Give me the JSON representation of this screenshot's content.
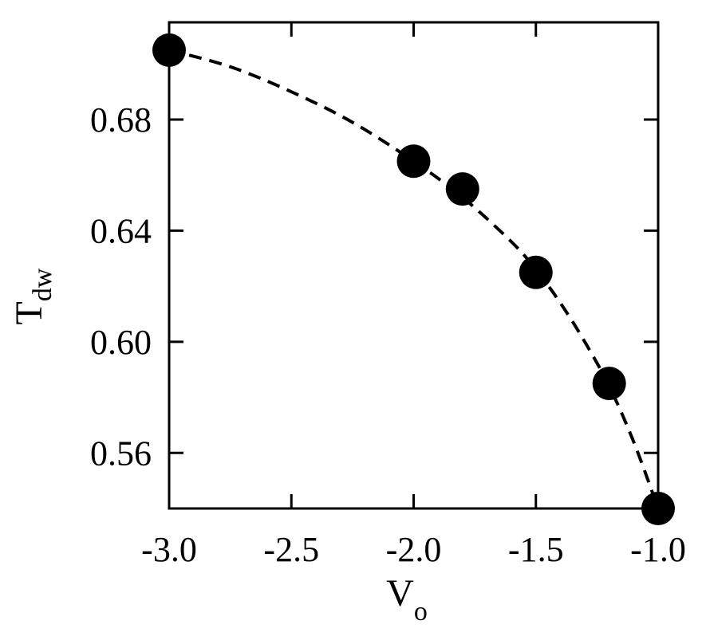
{
  "chart_data": {
    "type": "scatter",
    "title": "",
    "xlabel": {
      "main": "V",
      "sub": "o"
    },
    "ylabel": {
      "main": "T",
      "sub": "dw"
    },
    "xlim": [
      -3.0,
      -1.0
    ],
    "ylim": [
      0.54,
      0.715
    ],
    "x_ticks": [
      -3.0,
      -2.5,
      -2.0,
      -1.5,
      -1.0
    ],
    "x_tick_labels": [
      "-3.0",
      "-2.5",
      "-2.0",
      "-1.5",
      "-1.0"
    ],
    "y_ticks": [
      0.56,
      0.6,
      0.64,
      0.68
    ],
    "y_tick_labels": [
      "0.56",
      "0.60",
      "0.64",
      "0.68"
    ],
    "grid": false,
    "legend": "none",
    "series": [
      {
        "style": "markers",
        "marker": "filled-circle",
        "color": "#000000",
        "x": [
          -3.0,
          -2.0,
          -1.8,
          -1.5,
          -1.2,
          -1.0
        ],
        "y": [
          0.705,
          0.665,
          0.655,
          0.625,
          0.585,
          0.54
        ]
      },
      {
        "style": "dashed-line",
        "color": "#000000",
        "x": [
          -3.0,
          -2.75,
          -2.5,
          -2.25,
          -2.0,
          -1.8,
          -1.6,
          -1.5,
          -1.4,
          -1.3,
          -1.2,
          -1.1,
          -1.0
        ],
        "y": [
          0.705,
          0.699,
          0.69,
          0.679,
          0.665,
          0.652,
          0.636,
          0.626,
          0.614,
          0.6,
          0.584,
          0.564,
          0.54
        ]
      }
    ]
  }
}
